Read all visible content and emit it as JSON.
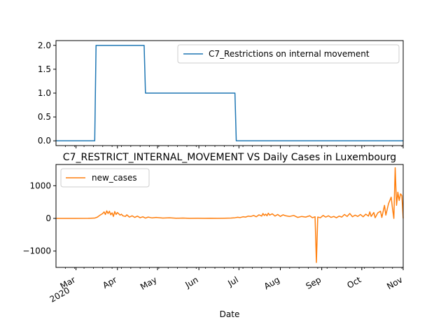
{
  "chart_data": [
    {
      "type": "line",
      "title": "",
      "xlabel": "",
      "ylabel": "",
      "ylim": [
        -0.1,
        2.1
      ],
      "yticks": [
        "0.0",
        "0.5",
        "1.0",
        "1.5",
        "2.0"
      ],
      "ytick_values": [
        0.0,
        0.5,
        1.0,
        1.5,
        2.0
      ],
      "legend_position": "top-right",
      "series": [
        {
          "name": "C7_Restrictions on internal movement",
          "color": "#1f77b4",
          "points": [
            [
              "2020-02-15",
              0
            ],
            [
              "2020-03-15",
              0
            ],
            [
              "2020-03-16",
              2
            ],
            [
              "2020-04-21",
              2
            ],
            [
              "2020-04-22",
              1
            ],
            [
              "2020-06-28",
              1
            ],
            [
              "2020-06-29",
              0
            ],
            [
              "2020-11-01",
              0
            ]
          ]
        }
      ]
    },
    {
      "type": "line",
      "title": "C7_RESTRICT_INTERNAL_MOVEMENT VS Daily Cases in Luxembourg",
      "xlabel": "Date",
      "ylabel": "",
      "ylim": [
        -1500,
        1650
      ],
      "yticks": [
        "−1000",
        "0",
        "1000"
      ],
      "ytick_values": [
        -1000,
        0,
        1000
      ],
      "xticks": [
        {
          "date": "2020-03-01",
          "label": "Mar",
          "sublabel": "2020"
        },
        {
          "date": "2020-04-01",
          "label": "Apr"
        },
        {
          "date": "2020-05-01",
          "label": "May"
        },
        {
          "date": "2020-06-01",
          "label": "Jun"
        },
        {
          "date": "2020-07-01",
          "label": "Jul"
        },
        {
          "date": "2020-08-01",
          "label": "Aug"
        },
        {
          "date": "2020-09-01",
          "label": "Sep"
        },
        {
          "date": "2020-10-01",
          "label": "Oct"
        },
        {
          "date": "2020-11-01",
          "label": "Nov"
        }
      ],
      "legend_position": "top-left",
      "series": [
        {
          "name": "new_cases",
          "color": "#ff7f0e",
          "points": [
            [
              "2020-02-15",
              0
            ],
            [
              "2020-02-29",
              0
            ],
            [
              "2020-03-10",
              2
            ],
            [
              "2020-03-15",
              10
            ],
            [
              "2020-03-17",
              40
            ],
            [
              "2020-03-19",
              100
            ],
            [
              "2020-03-21",
              150
            ],
            [
              "2020-03-22",
              200
            ],
            [
              "2020-03-23",
              120
            ],
            [
              "2020-03-24",
              230
            ],
            [
              "2020-03-25",
              150
            ],
            [
              "2020-03-26",
              220
            ],
            [
              "2020-03-27",
              110
            ],
            [
              "2020-03-28",
              170
            ],
            [
              "2020-03-29",
              60
            ],
            [
              "2020-03-30",
              210
            ],
            [
              "2020-03-31",
              120
            ],
            [
              "2020-04-01",
              180
            ],
            [
              "2020-04-02",
              140
            ],
            [
              "2020-04-03",
              100
            ],
            [
              "2020-04-04",
              130
            ],
            [
              "2020-04-05",
              80
            ],
            [
              "2020-04-07",
              60
            ],
            [
              "2020-04-08",
              110
            ],
            [
              "2020-04-10",
              40
            ],
            [
              "2020-04-12",
              80
            ],
            [
              "2020-04-14",
              30
            ],
            [
              "2020-04-16",
              70
            ],
            [
              "2020-04-18",
              20
            ],
            [
              "2020-04-20",
              50
            ],
            [
              "2020-04-22",
              10
            ],
            [
              "2020-04-24",
              40
            ],
            [
              "2020-04-27",
              15
            ],
            [
              "2020-04-30",
              30
            ],
            [
              "2020-05-05",
              10
            ],
            [
              "2020-05-10",
              20
            ],
            [
              "2020-05-15",
              5
            ],
            [
              "2020-05-20",
              10
            ],
            [
              "2020-05-25",
              3
            ],
            [
              "2020-05-31",
              5
            ],
            [
              "2020-06-05",
              3
            ],
            [
              "2020-06-10",
              5
            ],
            [
              "2020-06-15",
              2
            ],
            [
              "2020-06-20",
              5
            ],
            [
              "2020-06-25",
              10
            ],
            [
              "2020-06-28",
              20
            ],
            [
              "2020-06-30",
              35
            ],
            [
              "2020-07-02",
              25
            ],
            [
              "2020-07-04",
              50
            ],
            [
              "2020-07-06",
              40
            ],
            [
              "2020-07-08",
              70
            ],
            [
              "2020-07-10",
              60
            ],
            [
              "2020-07-12",
              90
            ],
            [
              "2020-07-14",
              50
            ],
            [
              "2020-07-16",
              110
            ],
            [
              "2020-07-18",
              70
            ],
            [
              "2020-07-19",
              150
            ],
            [
              "2020-07-20",
              90
            ],
            [
              "2020-07-21",
              130
            ],
            [
              "2020-07-22",
              80
            ],
            [
              "2020-07-23",
              160
            ],
            [
              "2020-07-24",
              100
            ],
            [
              "2020-07-26",
              140
            ],
            [
              "2020-07-28",
              70
            ],
            [
              "2020-07-30",
              120
            ],
            [
              "2020-08-01",
              60
            ],
            [
              "2020-08-03",
              110
            ],
            [
              "2020-08-05",
              80
            ],
            [
              "2020-08-08",
              60
            ],
            [
              "2020-08-11",
              90
            ],
            [
              "2020-08-14",
              30
            ],
            [
              "2020-08-17",
              60
            ],
            [
              "2020-08-20",
              40
            ],
            [
              "2020-08-23",
              80
            ],
            [
              "2020-08-25",
              20
            ],
            [
              "2020-08-27",
              50
            ],
            [
              "2020-08-28",
              -1350
            ],
            [
              "2020-08-29",
              40
            ],
            [
              "2020-08-31",
              20
            ],
            [
              "2020-09-02",
              90
            ],
            [
              "2020-09-04",
              40
            ],
            [
              "2020-09-06",
              80
            ],
            [
              "2020-09-08",
              30
            ],
            [
              "2020-09-10",
              60
            ],
            [
              "2020-09-12",
              20
            ],
            [
              "2020-09-14",
              70
            ],
            [
              "2020-09-16",
              40
            ],
            [
              "2020-09-18",
              120
            ],
            [
              "2020-09-20",
              60
            ],
            [
              "2020-09-22",
              150
            ],
            [
              "2020-09-24",
              50
            ],
            [
              "2020-09-26",
              100
            ],
            [
              "2020-09-28",
              60
            ],
            [
              "2020-09-30",
              120
            ],
            [
              "2020-10-02",
              50
            ],
            [
              "2020-10-04",
              130
            ],
            [
              "2020-10-06",
              70
            ],
            [
              "2020-10-07",
              200
            ],
            [
              "2020-10-08",
              60
            ],
            [
              "2020-10-10",
              180
            ],
            [
              "2020-10-11",
              20
            ],
            [
              "2020-10-13",
              170
            ],
            [
              "2020-10-15",
              220
            ],
            [
              "2020-10-16",
              30
            ],
            [
              "2020-10-18",
              400
            ],
            [
              "2020-10-19",
              100
            ],
            [
              "2020-10-21",
              450
            ],
            [
              "2020-10-23",
              650
            ],
            [
              "2020-10-24",
              300
            ],
            [
              "2020-10-25",
              0
            ],
            [
              "2020-10-26",
              1550
            ],
            [
              "2020-10-27",
              400
            ],
            [
              "2020-10-28",
              800
            ],
            [
              "2020-10-29",
              550
            ],
            [
              "2020-10-30",
              750
            ],
            [
              "2020-10-31",
              700
            ],
            [
              "2020-11-01",
              0
            ]
          ]
        }
      ]
    }
  ]
}
